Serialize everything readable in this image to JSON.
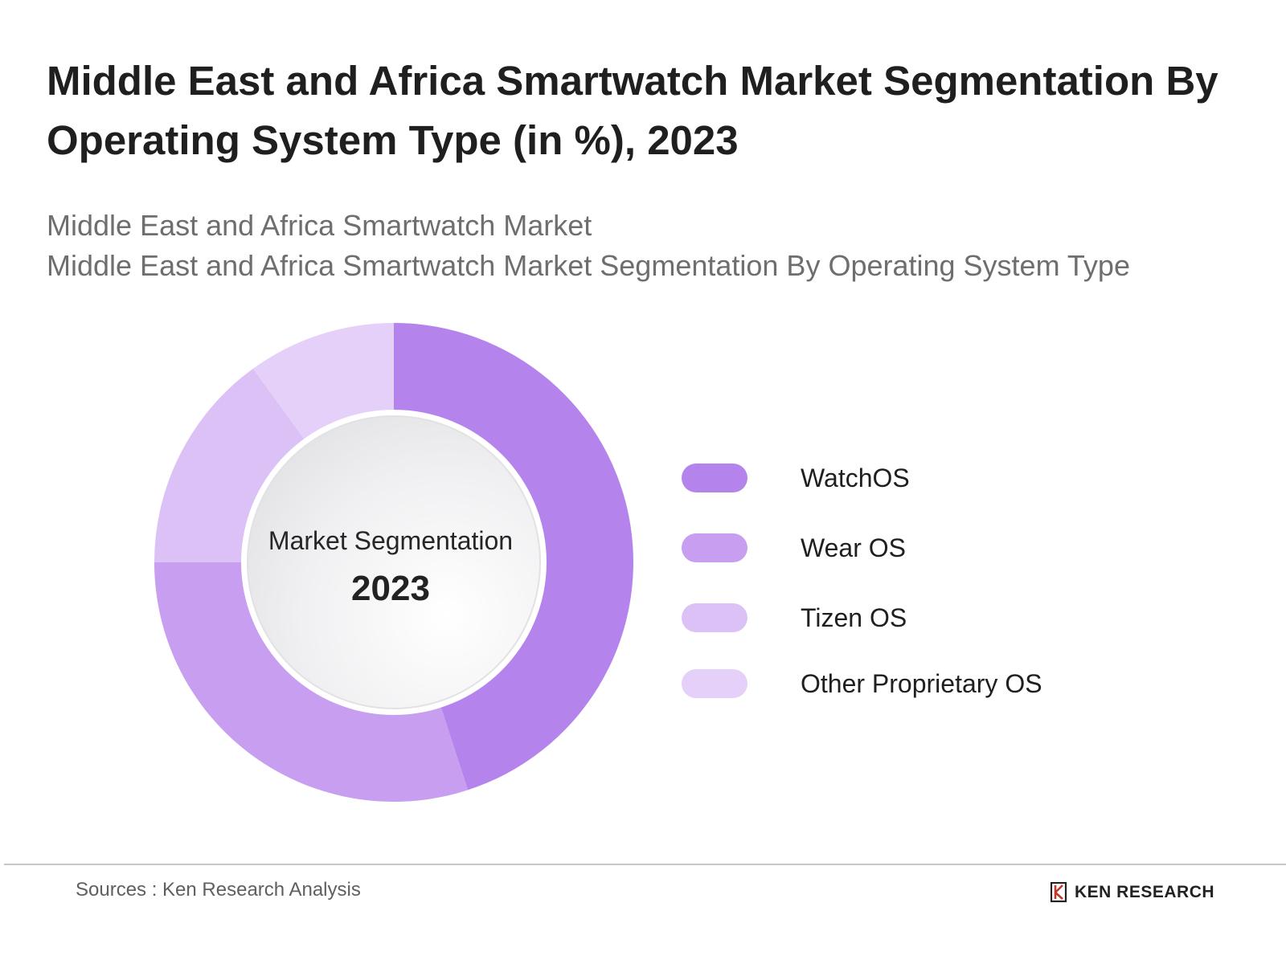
{
  "header": {
    "title": "Middle East and Africa Smartwatch Market Segmentation By Operating System Type (in %), 2023",
    "subtitle_1": "Middle East and Africa Smartwatch Market",
    "subtitle_2": "Middle East and Africa Smartwatch Market Segmentation By Operating System Type"
  },
  "center": {
    "label": "Market Segmentation",
    "year": "2023"
  },
  "footer": {
    "source": "Sources : Ken Research Analysis",
    "brand": "KEN RESEARCH"
  },
  "chart_data": {
    "type": "pie",
    "variant": "donut",
    "title": "Middle East and Africa Smartwatch Market Segmentation By Operating System Type (in %), 2023",
    "categories": [
      "WatchOS",
      "Wear OS",
      "Tizen OS",
      "Other Proprietary OS"
    ],
    "values": [
      45,
      30,
      15,
      10
    ],
    "colors": [
      "#b483ec",
      "#c79ef0",
      "#dcc1f6",
      "#e4d0f8"
    ],
    "legend": [
      "WatchOS",
      "Wear OS",
      "Tizen OS",
      "Other Proprietary OS"
    ],
    "legend_position": "right",
    "start_angle_deg": 0,
    "direction": "clockwise"
  }
}
